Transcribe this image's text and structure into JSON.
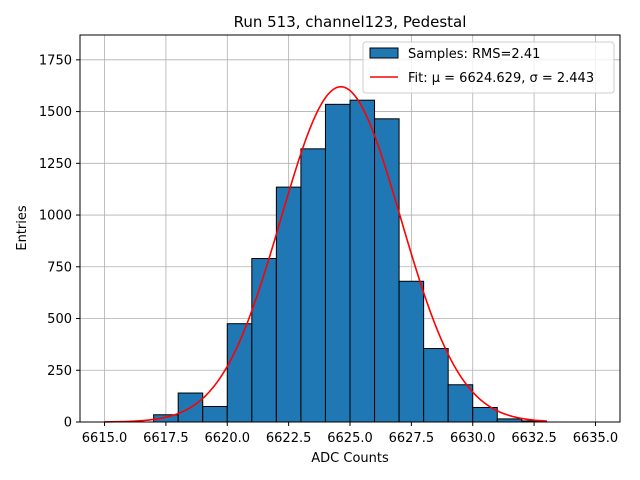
{
  "chart_data": {
    "type": "bar",
    "title": "Run 513, channel123, Pedestal",
    "xlabel": "ADC Counts",
    "ylabel": "Entries",
    "xlim": [
      6614.0,
      6636.0
    ],
    "ylim": [
      0,
      1870
    ],
    "xticks": [
      6615.0,
      6617.5,
      6620.0,
      6622.5,
      6625.0,
      6627.5,
      6630.0,
      6632.5,
      6635.0
    ],
    "xtick_labels": [
      "6615.0",
      "6617.5",
      "6620.0",
      "6622.5",
      "6625.0",
      "6627.5",
      "6630.0",
      "6632.5",
      "6635.0"
    ],
    "yticks": [
      0,
      250,
      500,
      750,
      1000,
      1250,
      1500,
      1750
    ],
    "ytick_labels": [
      "0",
      "250",
      "500",
      "750",
      "1000",
      "1250",
      "1500",
      "1750"
    ],
    "grid": true,
    "legend_position": "top-right",
    "histogram": {
      "name": "Samples: RMS=2.41",
      "color": "#1f77b4",
      "edge_color": "#000000",
      "bins": [
        {
          "x0": 6617.0,
          "x1": 6618.0,
          "count": 35
        },
        {
          "x0": 6618.0,
          "x1": 6619.0,
          "count": 140
        },
        {
          "x0": 6619.0,
          "x1": 6620.0,
          "count": 75
        },
        {
          "x0": 6620.0,
          "x1": 6621.0,
          "count": 475
        },
        {
          "x0": 6621.0,
          "x1": 6622.0,
          "count": 790
        },
        {
          "x0": 6622.0,
          "x1": 6623.0,
          "count": 1135
        },
        {
          "x0": 6623.0,
          "x1": 6624.0,
          "count": 1320
        },
        {
          "x0": 6624.0,
          "x1": 6625.0,
          "count": 1535
        },
        {
          "x0": 6625.0,
          "x1": 6626.0,
          "count": 1555
        },
        {
          "x0": 6626.0,
          "x1": 6627.0,
          "count": 1465
        },
        {
          "x0": 6627.0,
          "x1": 6628.0,
          "count": 680
        },
        {
          "x0": 6628.0,
          "x1": 6629.0,
          "count": 355
        },
        {
          "x0": 6629.0,
          "x1": 6630.0,
          "count": 180
        },
        {
          "x0": 6630.0,
          "x1": 6631.0,
          "count": 70
        },
        {
          "x0": 6631.0,
          "x1": 6632.0,
          "count": 15
        },
        {
          "x0": 6632.0,
          "x1": 6633.0,
          "count": 5
        }
      ]
    },
    "fit": {
      "name": "Fit: μ = 6624.629, σ = 2.443",
      "color": "#ff0000",
      "mu": 6624.629,
      "sigma": 2.443,
      "amplitude": 1620,
      "x_range": [
        6615.0,
        6633.0
      ]
    }
  }
}
